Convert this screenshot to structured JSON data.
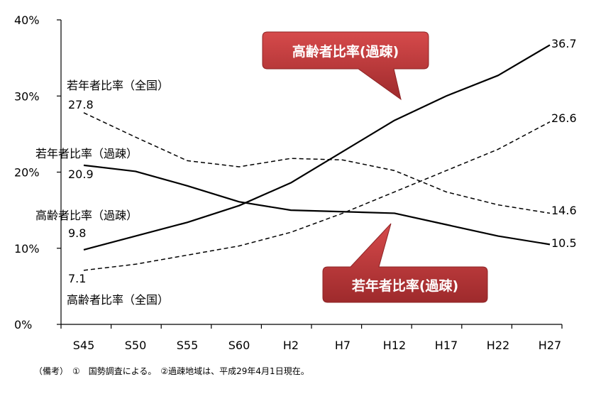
{
  "chart_data": {
    "type": "line",
    "categories": [
      "S45",
      "S50",
      "S55",
      "S60",
      "H2",
      "H7",
      "H12",
      "H17",
      "H22",
      "H27"
    ],
    "ylim": [
      0,
      40
    ],
    "yticks": [
      "0%",
      "10%",
      "20%",
      "30%",
      "40%"
    ],
    "grid": false,
    "series": [
      {
        "name": "高齢者比率（過疎）",
        "style": "solid",
        "values": [
          9.8,
          11.6,
          13.4,
          15.6,
          18.6,
          22.7,
          26.8,
          30.0,
          32.7,
          36.7
        ]
      },
      {
        "name": "若年者比率（過疎）",
        "style": "solid",
        "values": [
          20.9,
          20.1,
          18.2,
          16.1,
          15.0,
          14.8,
          14.6,
          13.1,
          11.6,
          10.5
        ]
      },
      {
        "name": "高齢者比率（全国）",
        "style": "dashed",
        "values": [
          7.1,
          7.9,
          9.1,
          10.3,
          12.1,
          14.6,
          17.4,
          20.2,
          23.0,
          26.6
        ]
      },
      {
        "name": "若年者比率（全国）",
        "style": "dashed",
        "values": [
          27.8,
          24.6,
          21.5,
          20.7,
          21.8,
          21.6,
          20.2,
          17.4,
          15.7,
          14.6
        ]
      }
    ],
    "annotations": {
      "start_labels": [
        {
          "name": "若年者比率（全国）",
          "value": "27.8"
        },
        {
          "name": "若年者比率（過疎）",
          "value": "20.9"
        },
        {
          "name": "高齢者比率（過疎）",
          "value": "9.8"
        },
        {
          "name": "高齢者比率（全国）",
          "value": "7.1"
        }
      ],
      "end_labels": [
        "36.7",
        "26.6",
        "14.6",
        "10.5"
      ],
      "callouts": [
        "高齢者比率(過疎)",
        "若年者比率(過疎)"
      ],
      "callout_color": "#c0393b"
    },
    "note": "（備考）　①　国勢調査による。　②過疎地域は、平成29年4月1日現在。"
  }
}
